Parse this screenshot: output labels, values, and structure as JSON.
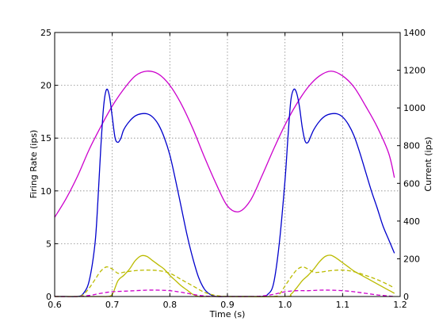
{
  "chart_data": {
    "type": "line",
    "title": "",
    "xlabel": "Time (s)",
    "ylabel_left": "Firing Rate (ips)",
    "ylabel_right": "Current (ips)",
    "xlim": [
      0.6,
      1.2
    ],
    "ylim_left": [
      0,
      25
    ],
    "ylim_right": [
      0,
      1400
    ],
    "xticks": [
      "0.6",
      "0.7",
      "0.8",
      "0.9",
      "1.0",
      "1.1",
      "1.2"
    ],
    "yticks_left": [
      "0",
      "5",
      "10",
      "15",
      "20",
      "25"
    ],
    "yticks_right": [
      "0",
      "200",
      "400",
      "600",
      "800",
      "1000",
      "1200",
      "1400"
    ],
    "grid": true,
    "legend": "none",
    "series": [
      {
        "color": "#cc00cc",
        "style": "solid",
        "axis": "right",
        "x": [
          0.6,
          0.62,
          0.64,
          0.66,
          0.68,
          0.7,
          0.72,
          0.74,
          0.76,
          0.78,
          0.8,
          0.82,
          0.84,
          0.86,
          0.88,
          0.9,
          0.92,
          0.94,
          0.96,
          0.98,
          1.0,
          1.02,
          1.04,
          1.06,
          1.08,
          1.1,
          1.12,
          1.14,
          1.16,
          1.18,
          1.19
        ],
        "y": [
          420,
          520,
          640,
          780,
          900,
          1010,
          1100,
          1170,
          1195,
          1180,
          1120,
          1020,
          890,
          740,
          600,
          480,
          450,
          510,
          640,
          780,
          910,
          1020,
          1110,
          1170,
          1195,
          1170,
          1110,
          1010,
          900,
          760,
          630
        ]
      },
      {
        "color": "#0000cc",
        "style": "solid",
        "axis": "left",
        "x": [
          0.6,
          0.62,
          0.64,
          0.65,
          0.66,
          0.67,
          0.675,
          0.68,
          0.685,
          0.69,
          0.695,
          0.7,
          0.705,
          0.71,
          0.715,
          0.72,
          0.73,
          0.74,
          0.75,
          0.76,
          0.77,
          0.78,
          0.79,
          0.8,
          0.81,
          0.82,
          0.83,
          0.84,
          0.85,
          0.86,
          0.87,
          0.88,
          0.9,
          0.92,
          0.94,
          0.96,
          0.97,
          0.98,
          0.99,
          1.0,
          1.005,
          1.01,
          1.015,
          1.02,
          1.025,
          1.03,
          1.035,
          1.04,
          1.045,
          1.05,
          1.06,
          1.07,
          1.08,
          1.09,
          1.1,
          1.11,
          1.12,
          1.13,
          1.14,
          1.15,
          1.16,
          1.17,
          1.18,
          1.19
        ],
        "y": [
          0,
          0,
          0,
          0.3,
          1.5,
          5,
          9,
          14,
          18,
          19.6,
          19,
          17,
          15,
          14.6,
          15,
          15.8,
          16.6,
          17.1,
          17.3,
          17.3,
          17.0,
          16.3,
          15.1,
          13.4,
          11,
          8.4,
          5.8,
          3.6,
          1.8,
          0.7,
          0.2,
          0,
          0,
          0,
          0,
          0,
          0.2,
          1.2,
          5,
          11,
          15,
          18.5,
          19.6,
          19.3,
          18,
          16,
          14.7,
          14.6,
          15.2,
          15.8,
          16.6,
          17.1,
          17.3,
          17.3,
          17.0,
          16.3,
          15.2,
          13.6,
          11.8,
          10,
          8.4,
          6.7,
          5.4,
          4.1
        ]
      },
      {
        "color": "#bbbb00",
        "style": "solid",
        "axis": "left",
        "x": [
          0.6,
          0.68,
          0.69,
          0.7,
          0.71,
          0.72,
          0.73,
          0.74,
          0.75,
          0.76,
          0.77,
          0.78,
          0.79,
          0.8,
          0.81,
          0.82,
          0.83,
          0.84,
          0.85,
          0.86,
          0.87,
          0.88,
          0.9,
          1.0,
          1.01,
          1.02,
          1.03,
          1.04,
          1.05,
          1.06,
          1.07,
          1.08,
          1.09,
          1.1,
          1.11,
          1.12,
          1.13,
          1.14,
          1.15,
          1.16,
          1.17,
          1.18,
          1.19
        ],
        "y": [
          0,
          0,
          0,
          0.2,
          1.5,
          2.0,
          2.6,
          3.4,
          3.85,
          3.8,
          3.4,
          3.0,
          2.6,
          2.0,
          1.5,
          1.0,
          0.6,
          0.2,
          0,
          0,
          0,
          0,
          0,
          0,
          0.2,
          0.8,
          1.5,
          2.0,
          2.6,
          3.3,
          3.8,
          3.9,
          3.6,
          3.2,
          2.8,
          2.4,
          2.1,
          1.8,
          1.5,
          1.2,
          0.9,
          0.6,
          0.3
        ]
      },
      {
        "color": "#bbbb00",
        "style": "dashed",
        "axis": "left",
        "x": [
          0.6,
          0.64,
          0.65,
          0.66,
          0.67,
          0.68,
          0.69,
          0.7,
          0.71,
          0.72,
          0.74,
          0.76,
          0.78,
          0.8,
          0.82,
          0.84,
          0.86,
          0.88,
          0.9,
          0.94,
          0.98,
          0.99,
          1.0,
          1.01,
          1.02,
          1.03,
          1.04,
          1.05,
          1.06,
          1.08,
          1.1,
          1.12,
          1.14,
          1.16,
          1.18,
          1.19
        ],
        "y": [
          0,
          0,
          0.2,
          0.8,
          1.6,
          2.4,
          2.8,
          2.6,
          2.2,
          2.3,
          2.45,
          2.5,
          2.45,
          2.2,
          1.6,
          1.0,
          0.4,
          0.1,
          0,
          0,
          0,
          0.2,
          1.0,
          1.8,
          2.5,
          2.8,
          2.6,
          2.3,
          2.3,
          2.45,
          2.5,
          2.35,
          2.0,
          1.6,
          1.1,
          0.8
        ]
      },
      {
        "color": "#cc00cc",
        "style": "dashed",
        "axis": "left",
        "x": [
          0.6,
          0.64,
          0.66,
          0.68,
          0.7,
          0.72,
          0.74,
          0.76,
          0.78,
          0.8,
          0.82,
          0.84,
          0.86,
          0.88,
          0.9,
          0.94,
          0.96,
          0.98,
          1.0,
          1.02,
          1.04,
          1.06,
          1.08,
          1.1,
          1.12,
          1.14,
          1.16,
          1.18,
          1.19
        ],
        "y": [
          0,
          0,
          0.1,
          0.3,
          0.45,
          0.5,
          0.55,
          0.6,
          0.6,
          0.55,
          0.4,
          0.2,
          0.05,
          0,
          0,
          0,
          0.05,
          0.2,
          0.45,
          0.55,
          0.55,
          0.6,
          0.6,
          0.55,
          0.45,
          0.3,
          0.15,
          0.05,
          0
        ]
      }
    ]
  }
}
